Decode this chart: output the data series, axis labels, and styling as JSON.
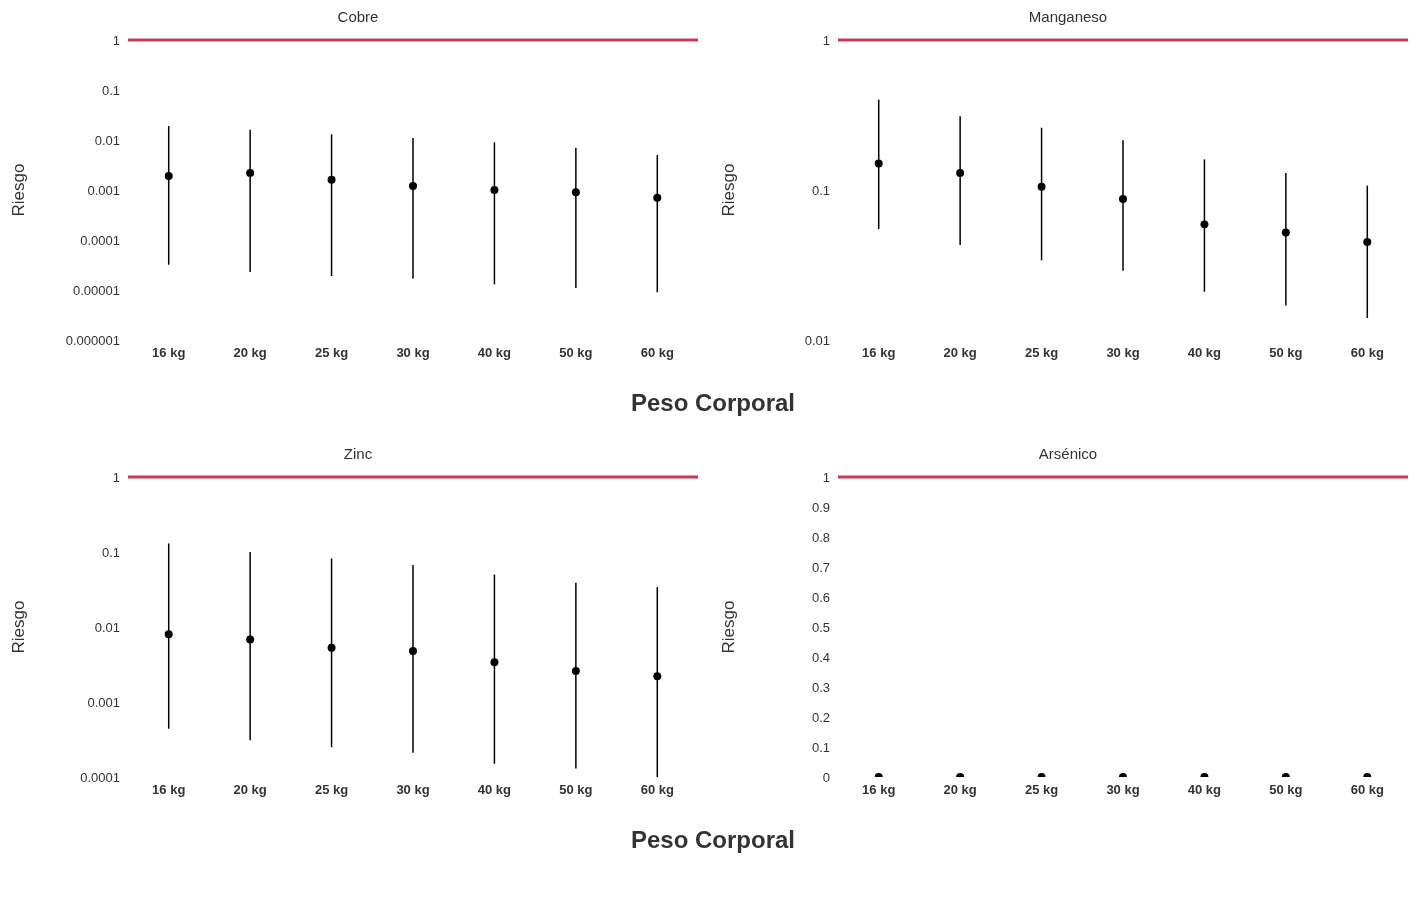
{
  "chart_data": [
    {
      "type": "scatter",
      "title": "Cobre",
      "ylabel": "Riesgo",
      "xlabel": "Peso Corporal",
      "log": "y",
      "marker": "circle",
      "grid": false,
      "legend": false,
      "categories": [
        "16 kg",
        "20 kg",
        "25 kg",
        "30 kg",
        "40 kg",
        "50 kg",
        "60 kg"
      ],
      "ylim": [
        1e-06,
        1
      ],
      "yticks": [
        {
          "value": 1e-06,
          "label": "0.000001"
        },
        {
          "value": 1e-05,
          "label": "0.00001"
        },
        0.0001,
        0.001,
        0.01,
        0.1,
        1
      ],
      "series": [
        {
          "color": "#000000",
          "values": [
            0.0019,
            0.0022,
            0.0016,
            0.0012,
            0.001,
            0.0009,
            0.0007
          ],
          "errors": [
            [
              3.2e-05,
              0.019
            ],
            [
              2.3e-05,
              0.016
            ],
            [
              1.9e-05,
              0.013
            ],
            [
              1.7e-05,
              0.011
            ],
            [
              1.3e-05,
              0.009
            ],
            [
              1.1e-05,
              0.007
            ],
            [
              9e-06,
              0.005
            ]
          ]
        }
      ],
      "ref_lines": [
        {
          "axis": "y",
          "value": 1,
          "color": "#c8385a"
        }
      ]
    },
    {
      "type": "scatter",
      "title": "Manganeso",
      "ylabel": "Riesgo",
      "log": "y",
      "marker": "circle",
      "grid": false,
      "legend": false,
      "categories": [
        "16 kg",
        "20 kg",
        "25 kg",
        "30 kg",
        "40 kg",
        "50 kg",
        "60 kg"
      ],
      "ylim": [
        0.01,
        1
      ],
      "yticks": [
        0.01,
        0.1,
        1
      ],
      "series": [
        {
          "color": "#000000",
          "values": [
            0.15,
            0.13,
            0.105,
            0.087,
            0.059,
            0.052,
            0.045
          ],
          "errors": [
            [
              0.055,
              0.4
            ],
            [
              0.043,
              0.31
            ],
            [
              0.034,
              0.26
            ],
            [
              0.029,
              0.215
            ],
            [
              0.021,
              0.16
            ],
            [
              0.017,
              0.13
            ],
            [
              0.014,
              0.107
            ]
          ]
        }
      ],
      "ref_lines": [
        {
          "axis": "y",
          "value": 1,
          "color": "#c8385a"
        }
      ]
    },
    {
      "type": "scatter",
      "title": "Zinc",
      "ylabel": "Riesgo",
      "xlabel": "Peso Corporal",
      "log": "y",
      "marker": "circle",
      "grid": false,
      "legend": false,
      "categories": [
        "16 kg",
        "20 kg",
        "25 kg",
        "30 kg",
        "40 kg",
        "50 kg",
        "60 kg"
      ],
      "ylim": [
        0.0001,
        1
      ],
      "yticks": [
        0.0001,
        0.001,
        0.01,
        0.1,
        1
      ],
      "series": [
        {
          "color": "#000000",
          "values": [
            0.008,
            0.0068,
            0.0053,
            0.0048,
            0.0034,
            0.0026,
            0.0022
          ],
          "errors": [
            [
              0.00044,
              0.13
            ],
            [
              0.00031,
              0.1
            ],
            [
              0.00025,
              0.082
            ],
            [
              0.00021,
              0.067
            ],
            [
              0.00015,
              0.05
            ],
            [
              0.00013,
              0.039
            ],
            [
              0.0001,
              0.034
            ]
          ]
        }
      ],
      "ref_lines": [
        {
          "axis": "y",
          "value": 1,
          "color": "#c8385a"
        }
      ]
    },
    {
      "type": "scatter",
      "title": "Arsénico",
      "ylabel": "Riesgo",
      "marker": "circle",
      "grid": false,
      "legend": false,
      "categories": [
        "16 kg",
        "20 kg",
        "25 kg",
        "30 kg",
        "40 kg",
        "50 kg",
        "60 kg"
      ],
      "ylim": [
        0,
        1
      ],
      "yticks": [
        0,
        0.1,
        0.2,
        0.3,
        0.4,
        0.5,
        0.6,
        0.7,
        0.8,
        0.9,
        1
      ],
      "series": [
        {
          "color": "#000000",
          "values": [
            0,
            0,
            0,
            0,
            0,
            0,
            0
          ]
        }
      ],
      "ref_lines": [
        {
          "axis": "y",
          "value": 1,
          "color": "#c8385a"
        }
      ]
    }
  ]
}
